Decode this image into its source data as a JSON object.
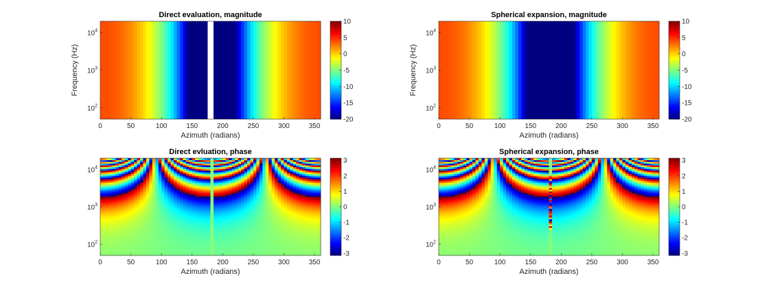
{
  "chart_data": [
    {
      "type": "heatmap",
      "title": "Direct evaluation, magnitude",
      "xlabel": "Azimuth (radians)",
      "ylabel": "Frequency (Hz)",
      "xlim": [
        0,
        360
      ],
      "ylim": [
        50,
        20000
      ],
      "yscale": "log",
      "xticks": [
        "0",
        "50",
        "100",
        "150",
        "200",
        "250",
        "300",
        "350"
      ],
      "yticks": [
        {
          "base": "10",
          "exp": "2",
          "value": 100
        },
        {
          "base": "10",
          "exp": "3",
          "value": 1000
        },
        {
          "base": "10",
          "exp": "4",
          "value": 10000
        }
      ],
      "azimuth_step": 5,
      "clim": [
        -20,
        10
      ],
      "colorbar_ticks": [
        "10",
        "5",
        "0",
        "-5",
        "-10",
        "-15",
        "-20"
      ],
      "magnitude_db": [
        4,
        3.98,
        3.92,
        3.81,
        3.67,
        3.48,
        3.25,
        2.97,
        2.65,
        2.28,
        1.86,
        1.4,
        0.88,
        0.3,
        -0.33,
        -1.03,
        -1.79,
        -2.62,
        -3.53,
        -4.52,
        -5.6,
        -6.78,
        -8.07,
        -9.49,
        -11.05,
        -12.78,
        -14.7,
        -16.86,
        -19.3,
        -20,
        -20,
        -20,
        -20,
        -20,
        -20,
        null,
        null,
        -20,
        -20,
        -20,
        -20,
        -20,
        -20,
        -20,
        -19.3,
        -16.86,
        -14.7,
        -12.78,
        -11.05,
        -9.49,
        -8.07,
        -6.78,
        -5.6,
        -4.52,
        -3.53,
        -2.62,
        -1.79,
        -1.03,
        -0.33,
        0.3,
        0.88,
        1.4,
        1.86,
        2.28,
        2.65,
        2.97,
        3.25,
        3.48,
        3.67,
        3.81,
        3.92,
        3.98
      ]
    },
    {
      "type": "heatmap",
      "title": "Spherical expansion, magnitude",
      "xlabel": "Azimuth (radians)",
      "ylabel": "Frequency (Hz)",
      "xlim": [
        0,
        360
      ],
      "ylim": [
        50,
        20000
      ],
      "yscale": "log",
      "xticks": [
        "0",
        "50",
        "100",
        "150",
        "200",
        "250",
        "300",
        "350"
      ],
      "yticks": [
        {
          "base": "10",
          "exp": "2",
          "value": 100
        },
        {
          "base": "10",
          "exp": "3",
          "value": 1000
        },
        {
          "base": "10",
          "exp": "4",
          "value": 10000
        }
      ],
      "azimuth_step": 5,
      "clim": [
        -20,
        10
      ],
      "colorbar_ticks": [
        "10",
        "5",
        "0",
        "-5",
        "-10",
        "-15",
        "-20"
      ],
      "magnitude_db": [
        4,
        3.98,
        3.92,
        3.81,
        3.67,
        3.48,
        3.25,
        2.97,
        2.65,
        2.28,
        1.86,
        1.4,
        0.88,
        0.3,
        -0.33,
        -1.03,
        -1.79,
        -2.62,
        -3.53,
        -4.52,
        -5.6,
        -6.78,
        -8.07,
        -9.49,
        -11.05,
        -12.78,
        -14.7,
        -16.86,
        -19.3,
        -20,
        -20,
        -20,
        -20,
        -20,
        -20,
        -20,
        -20,
        -20,
        -20,
        -20,
        -20,
        -20,
        -20,
        -20,
        -19.3,
        -16.86,
        -14.7,
        -12.78,
        -11.05,
        -9.49,
        -8.07,
        -6.78,
        -5.6,
        -4.52,
        -3.53,
        -2.62,
        -1.79,
        -1.03,
        -0.33,
        0.3,
        0.88,
        1.4,
        1.86,
        2.28,
        2.65,
        2.97,
        3.25,
        3.48,
        3.67,
        3.81,
        3.92,
        3.98
      ]
    },
    {
      "type": "heatmap",
      "title": "Direct evluation, phase",
      "xlabel": "Azimuth (radians)",
      "ylabel": "",
      "xlim": [
        0,
        360
      ],
      "ylim": [
        50,
        20000
      ],
      "yscale": "log",
      "xticks": [
        "0",
        "50",
        "100",
        "150",
        "200",
        "250",
        "300",
        "350"
      ],
      "yticks": [
        {
          "base": "10",
          "exp": "2",
          "value": 100
        },
        {
          "base": "10",
          "exp": "3",
          "value": 1000
        },
        {
          "base": "10",
          "exp": "4",
          "value": 10000
        }
      ],
      "azimuth_step": 5,
      "clim": [
        -3.1416,
        3.1416
      ],
      "colorbar_ticks": [
        "3",
        "2",
        "1",
        "0",
        "-1",
        "-2",
        "-3"
      ],
      "phase_model": {
        "formula": "wrap(pi * f / f_pi * cos(azimuth))",
        "f_pi_hz": 1800,
        "zero_columns_deg": [
          180
        ]
      }
    },
    {
      "type": "heatmap",
      "title": "Spherical expansion, phase",
      "xlabel": "Azimuth (radians)",
      "ylabel": "",
      "xlim": [
        0,
        360
      ],
      "ylim": [
        50,
        20000
      ],
      "yscale": "log",
      "xticks": [
        "0",
        "50",
        "100",
        "150",
        "200",
        "250",
        "300",
        "350"
      ],
      "yticks": [
        {
          "base": "10",
          "exp": "2",
          "value": 100
        },
        {
          "base": "10",
          "exp": "3",
          "value": 1000
        },
        {
          "base": "10",
          "exp": "4",
          "value": 10000
        }
      ],
      "azimuth_step": 5,
      "clim": [
        -3.1416,
        3.1416
      ],
      "colorbar_ticks": [
        "3",
        "2",
        "1",
        "0",
        "-1",
        "-2",
        "-3"
      ],
      "phase_model": {
        "formula": "wrap(pi * f / f_pi * cos(azimuth))",
        "f_pi_hz": 1800,
        "noisy_column_deg": 180,
        "noisy_column_range_hz": [
          250,
          7000
        ],
        "noisy_column_values": [
          0.9,
          2.4,
          0.5,
          1.8,
          2.9,
          -2.2,
          1.2,
          2.6,
          1.9,
          2.2,
          2.7,
          -2.8,
          1.5,
          2.3,
          -2.5,
          -2.0,
          2.5,
          -1.8,
          2.8,
          -2.6,
          2.1,
          2.9
        ]
      }
    }
  ]
}
